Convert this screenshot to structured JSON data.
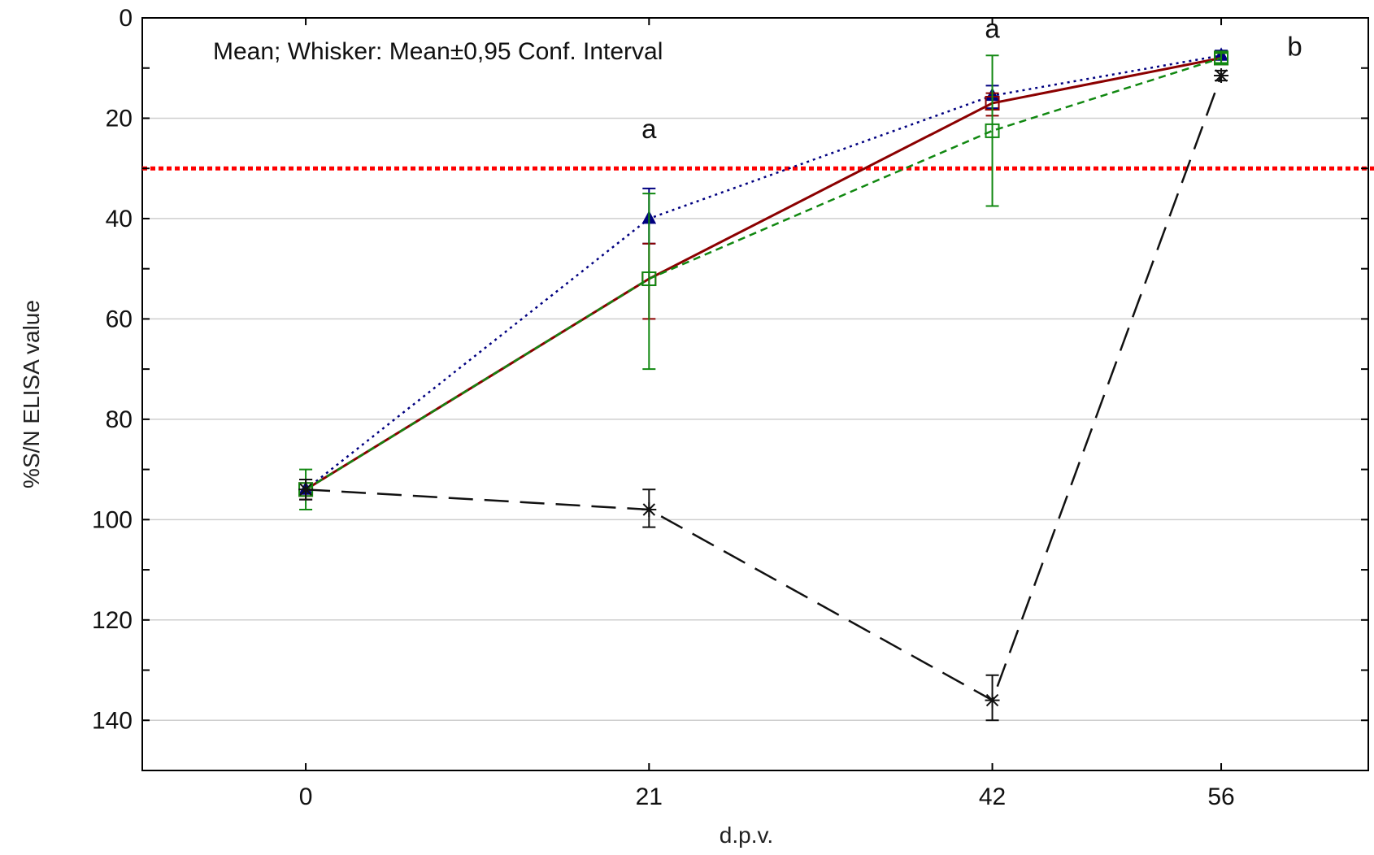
{
  "chart_data": {
    "type": "line",
    "title": "",
    "note": "Mean; Whisker: Mean±0,95 Conf. Interval",
    "xlabel": "d.p.v.",
    "ylabel": "%S/N ELISA value",
    "x": [
      0,
      21,
      42,
      56
    ],
    "xticks": [
      "0",
      "21",
      "42",
      "56"
    ],
    "xlim": [
      -10,
      65
    ],
    "ylim": [
      0,
      150
    ],
    "y_inverted": true,
    "yticks": [
      0,
      20,
      40,
      60,
      80,
      100,
      120,
      140
    ],
    "grid": "horizontal",
    "threshold": {
      "value": 30,
      "color": "#ff0000",
      "style": "dotted"
    },
    "annotations": [
      {
        "text": "a",
        "x": 21,
        "y": 24
      },
      {
        "text": "a",
        "x": 42,
        "y": 4
      },
      {
        "text": "b",
        "x": 60.5,
        "y": 7.5
      }
    ],
    "series": [
      {
        "color": "#000080",
        "dash": "dotted",
        "marker": "triangle",
        "values": [
          94,
          40,
          15.5,
          7.5
        ],
        "ci": [
          [
            92,
            96
          ],
          [
            34,
            45
          ],
          [
            13.5,
            18
          ],
          [
            6.5,
            9
          ]
        ]
      },
      {
        "color": "#8b0000",
        "dash": "solid",
        "marker": "square",
        "values": [
          94,
          52,
          17,
          8
        ],
        "ci": [
          [
            92,
            96
          ],
          [
            45,
            60
          ],
          [
            15,
            19.5
          ],
          [
            7,
            9
          ]
        ]
      },
      {
        "color": "#118811",
        "dash": "dashed",
        "marker": "square",
        "values": [
          94,
          52,
          22.5,
          8
        ],
        "ci": [
          [
            90,
            98
          ],
          [
            35,
            70
          ],
          [
            7.5,
            37.5
          ],
          [
            7,
            9
          ]
        ]
      },
      {
        "color": "#111111",
        "dash": "longdash",
        "marker": "asterisk",
        "values": [
          94,
          98,
          136,
          11.5
        ],
        "ci": [
          [
            92,
            96
          ],
          [
            94,
            101.5
          ],
          [
            131,
            140
          ],
          [
            10.5,
            12.5
          ]
        ]
      }
    ]
  }
}
